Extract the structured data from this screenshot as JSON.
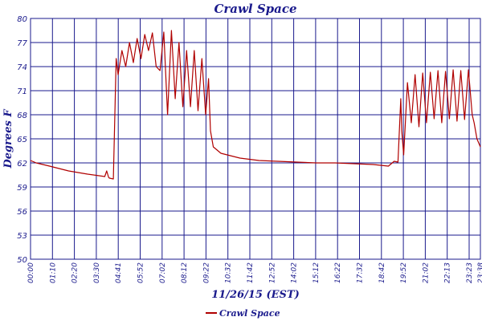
{
  "chart_data": {
    "type": "line",
    "title": "Crawl Space",
    "xlabel": "11/26/15 (EST)",
    "ylabel": "Degrees F",
    "ylim": [
      50,
      80
    ],
    "yticks": [
      50,
      53,
      56,
      59,
      62,
      65,
      68,
      71,
      74,
      77,
      80
    ],
    "x_tick_labels": [
      "00:00",
      "01:10",
      "02:20",
      "03:30",
      "04:41",
      "05:52",
      "07:02",
      "08:12",
      "09:22",
      "10:32",
      "11:42",
      "12:52",
      "14:02",
      "15:12",
      "16:22",
      "17:32",
      "18:42",
      "19:52",
      "21:02",
      "22:13",
      "23:23",
      "23:38"
    ],
    "x_unit": "hours",
    "xlim": [
      0,
      23.63
    ],
    "grid": true,
    "legend_position": "bottom-left",
    "series": [
      {
        "name": "Crawl Space",
        "color": "#b00000",
        "x": [
          0.0,
          0.3,
          1.0,
          2.0,
          3.0,
          3.9,
          4.0,
          4.1,
          4.15,
          4.35,
          4.5,
          4.6,
          4.8,
          5.0,
          5.2,
          5.4,
          5.6,
          5.8,
          6.0,
          6.2,
          6.4,
          6.6,
          6.8,
          7.0,
          7.2,
          7.4,
          7.6,
          7.8,
          8.0,
          8.2,
          8.4,
          8.6,
          8.8,
          9.0,
          9.2,
          9.35,
          9.45,
          9.6,
          10.0,
          10.5,
          11.0,
          12.0,
          13.0,
          14.0,
          15.0,
          16.0,
          17.0,
          18.0,
          18.8,
          19.1,
          19.3,
          19.45,
          19.5,
          19.6,
          19.8,
          20.0,
          20.2,
          20.4,
          20.6,
          20.8,
          21.0,
          21.2,
          21.4,
          21.6,
          21.8,
          22.0,
          22.2,
          22.4,
          22.6,
          22.8,
          23.0,
          23.2,
          23.3,
          23.45,
          23.63
        ],
        "values": [
          62.3,
          62.0,
          61.6,
          61.0,
          60.6,
          60.3,
          61.0,
          60.2,
          60.1,
          60.0,
          75.0,
          73.0,
          76.0,
          74.0,
          77.0,
          74.5,
          77.5,
          75.0,
          78.0,
          76.0,
          78.2,
          74.0,
          73.5,
          78.3,
          68.0,
          78.5,
          70.0,
          77.0,
          69.0,
          76.0,
          69.0,
          76.0,
          68.5,
          75.0,
          68.0,
          72.5,
          66.0,
          64.0,
          63.2,
          62.9,
          62.6,
          62.3,
          62.2,
          62.1,
          62.0,
          62.0,
          61.9,
          61.8,
          61.6,
          62.2,
          62.1,
          70.0,
          66.0,
          63.0,
          72.0,
          67.0,
          73.0,
          66.5,
          73.2,
          67.0,
          73.3,
          67.5,
          73.5,
          67.0,
          73.4,
          67.5,
          73.6,
          67.2,
          73.5,
          67.4,
          73.6,
          68.0,
          67.0,
          65.0,
          64.0
        ]
      }
    ]
  }
}
